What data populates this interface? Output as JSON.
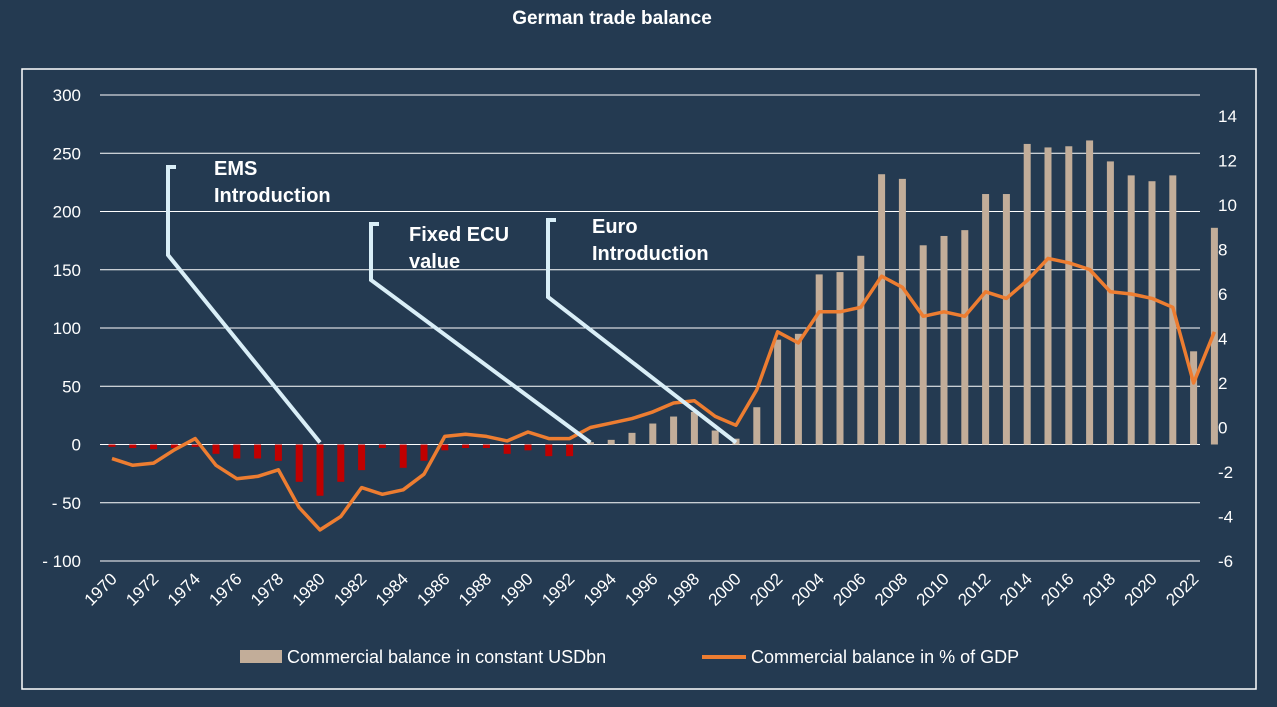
{
  "chart_data": {
    "type": "bar+line",
    "title": "German trade balance",
    "x": [
      1970,
      1971,
      1972,
      1973,
      1974,
      1975,
      1976,
      1977,
      1978,
      1979,
      1980,
      1981,
      1982,
      1983,
      1984,
      1985,
      1986,
      1987,
      1988,
      1989,
      1990,
      1991,
      1992,
      1993,
      1994,
      1995,
      1996,
      1997,
      1998,
      1999,
      2000,
      2001,
      2002,
      2003,
      2004,
      2005,
      2006,
      2007,
      2008,
      2009,
      2010,
      2011,
      2012,
      2013,
      2014,
      2015,
      2016,
      2017,
      2018,
      2019,
      2020,
      2021,
      2022,
      2023
    ],
    "x_tick_labels": [
      "1970",
      "1972",
      "1974",
      "1976",
      "1978",
      "1980",
      "1982",
      "1984",
      "1986",
      "1988",
      "1990",
      "1992",
      "1994",
      "1996",
      "1998",
      "2000",
      "2002",
      "2004",
      "2006",
      "2008",
      "2010",
      "2012",
      "2014",
      "2016",
      "2018",
      "2020",
      "2022"
    ],
    "series": [
      {
        "name": "Commercial balance in constant USDbn",
        "type": "bar",
        "axis": "left",
        "values": [
          -2,
          -3,
          -4,
          -3,
          -2,
          -8,
          -12,
          -12,
          -14,
          -32,
          -44,
          -32,
          -22,
          -3,
          -20,
          -14,
          -5,
          -3,
          -3,
          -8,
          -5,
          -10,
          -10,
          2,
          4,
          10,
          18,
          24,
          28,
          12,
          5,
          32,
          90,
          95,
          146,
          148,
          162,
          232,
          228,
          171,
          179,
          184,
          215,
          215,
          258,
          255,
          256,
          261,
          243,
          231,
          226,
          231,
          80,
          186
        ],
        "negative_color": "#c00000",
        "color": "#c2ad99"
      },
      {
        "name": "Commercial balance in % of GDP",
        "type": "line",
        "axis": "right",
        "values": [
          -1.4,
          -1.7,
          -1.6,
          -1.0,
          -0.5,
          -1.7,
          -2.3,
          -2.2,
          -1.9,
          -3.6,
          -4.6,
          -4.0,
          -2.7,
          -3.0,
          -2.8,
          -2.1,
          -0.4,
          -0.3,
          -0.4,
          -0.6,
          -0.2,
          -0.5,
          -0.5,
          0.0,
          0.2,
          0.4,
          0.7,
          1.1,
          1.2,
          0.5,
          0.1,
          1.7,
          4.3,
          3.8,
          5.2,
          5.2,
          5.4,
          6.8,
          6.3,
          5.0,
          5.2,
          5.0,
          6.1,
          5.8,
          6.6,
          7.6,
          7.4,
          7.1,
          6.1,
          6.0,
          5.8,
          5.4,
          2.0,
          4.3
        ],
        "color": "#ed7d31"
      }
    ],
    "y_left": {
      "min": -100,
      "max": 300,
      "ticks": [
        300,
        250,
        200,
        150,
        100,
        50,
        0,
        -50,
        -100
      ],
      "tick_labels": [
        "300",
        "250",
        "200",
        "150",
        "100",
        "50",
        "0",
        "- 50",
        "- 100"
      ]
    },
    "y_right": {
      "min": -6,
      "max": 14,
      "ticks": [
        14,
        12,
        10,
        8,
        6,
        4,
        2,
        0,
        -2,
        -4,
        -6
      ],
      "tick_labels": [
        "14",
        "12",
        "10",
        "8",
        "6",
        "4",
        "2",
        "0",
        "-2",
        "-4",
        "-6"
      ]
    },
    "annotations": [
      {
        "lines": [
          "EMS",
          "Introduction"
        ],
        "year": 1980
      },
      {
        "lines": [
          "Fixed ECU",
          "value"
        ],
        "year": 1993
      },
      {
        "lines": [
          "Euro",
          "Introduction"
        ],
        "year": 2000
      }
    ],
    "grid": true,
    "legend_position": "bottom",
    "background": "#243a51",
    "gridline_color": "#ffffff",
    "annotation_line_color": "#d9eef7"
  }
}
